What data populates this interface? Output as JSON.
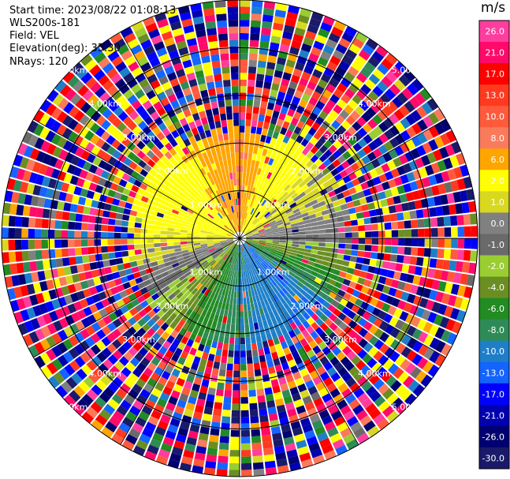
{
  "header": {
    "start_time": "Start time: 2023/08/22 01:08:13",
    "instrument": "WLS200s-181",
    "field": "Field: VEL",
    "elevation": "Elevation(deg): 35.30",
    "nrays": "NRays: 120"
  },
  "colorbar": {
    "unit": "m/s",
    "ticks": [
      "26.0",
      "21.0",
      "17.0",
      "13.0",
      "10.0",
      "8.0",
      "6.0",
      "2.0",
      "1.0",
      "0.0",
      "-1.0",
      "-2.0",
      "-4.0",
      "-6.0",
      "-8.0",
      "-10.0",
      "-13.0",
      "-17.0",
      "-21.0",
      "-26.0",
      "-30.0"
    ],
    "colors": [
      "#ff3d9e",
      "#ff0a6a",
      "#ff0000",
      "#ff3a1f",
      "#ff5a3c",
      "#fa7a5c",
      "#ffa500",
      "#ffff00",
      "#d8d820",
      "#808080",
      "#6a6a6a",
      "#9acd32",
      "#6b8e23",
      "#228b22",
      "#2e8b57",
      "#1e7fc8",
      "#1464ff",
      "#0000ff",
      "#0000b0",
      "#000070",
      "#1a1a6a"
    ]
  },
  "chart_data": {
    "type": "ppi",
    "field": "VEL",
    "units": "m/s",
    "rays": 120,
    "range_ring_labels": [
      "1.00km",
      "2.00km",
      "3.00km",
      "4.00km",
      "5.00km"
    ],
    "range_rings_km": [
      1,
      2,
      3,
      4,
      5
    ],
    "max_range_km": 5,
    "color_levels": [
      -30,
      -26,
      -21,
      -17,
      -13,
      -10,
      -8,
      -6,
      -4,
      -2,
      -1,
      0,
      1,
      2,
      6,
      8,
      10,
      13,
      17,
      21,
      26
    ],
    "velocity_pattern": [
      {
        "sector": "north",
        "velocity_m_s": 8.0
      },
      {
        "sector": "north-east",
        "velocity_m_s": 2.0
      },
      {
        "sector": "east",
        "velocity_m_s": 0.0
      },
      {
        "sector": "west",
        "velocity_m_s": 2.0
      },
      {
        "sector": "south-west",
        "velocity_m_s": -2.0
      },
      {
        "sector": "south",
        "velocity_m_s": -8.0
      },
      {
        "sector": "south-east",
        "velocity_m_s": -10.0
      }
    ],
    "noise_beyond_km": 2.3
  }
}
